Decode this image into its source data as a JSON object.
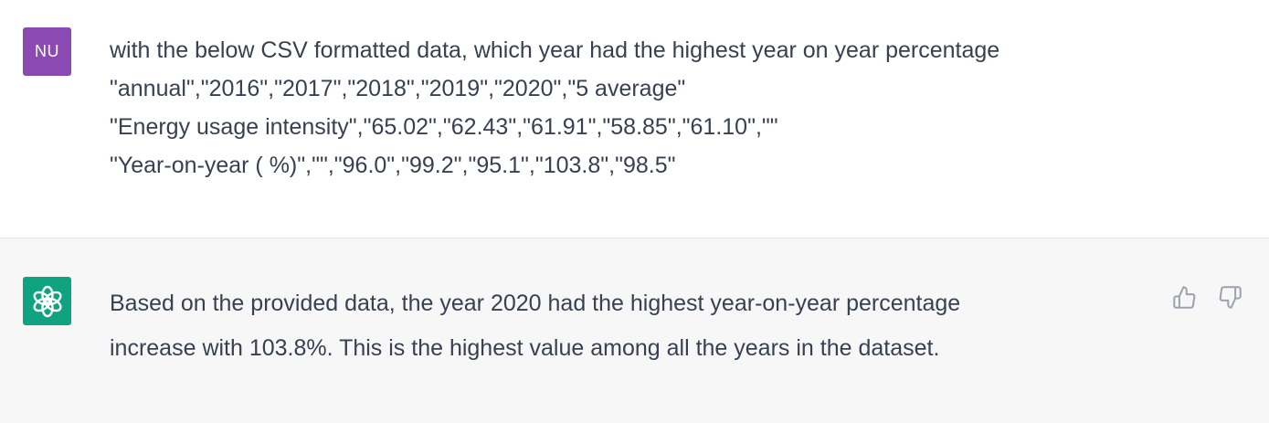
{
  "user_turn": {
    "avatar_initials": "NU",
    "avatar_color": "#8b49b4",
    "lines": [
      "with the below CSV formatted data, which year had the highest year on year percentage",
      "\"annual\",\"2016\",\"2017\",\"2018\",\"2019\",\"2020\",\"5 average\"",
      "\"Energy usage intensity\",\"65.02\",\"62.43\",\"61.91\",\"58.85\",\"61.10\",\"\"",
      "\"Year-on-year ( %)\",\"\",\"96.0\",\"99.2\",\"95.1\",\"103.8\",\"98.5\""
    ]
  },
  "assistant_turn": {
    "avatar_icon": "openai-logo-icon",
    "avatar_color": "#10a37f",
    "lines": [
      "Based on the provided data, the year 2020 had the highest year-on-year percentage",
      "increase with 103.8%. This is the highest value among all the years in the dataset."
    ],
    "feedback_icons": [
      "thumbs-up-icon",
      "thumbs-down-icon"
    ]
  }
}
